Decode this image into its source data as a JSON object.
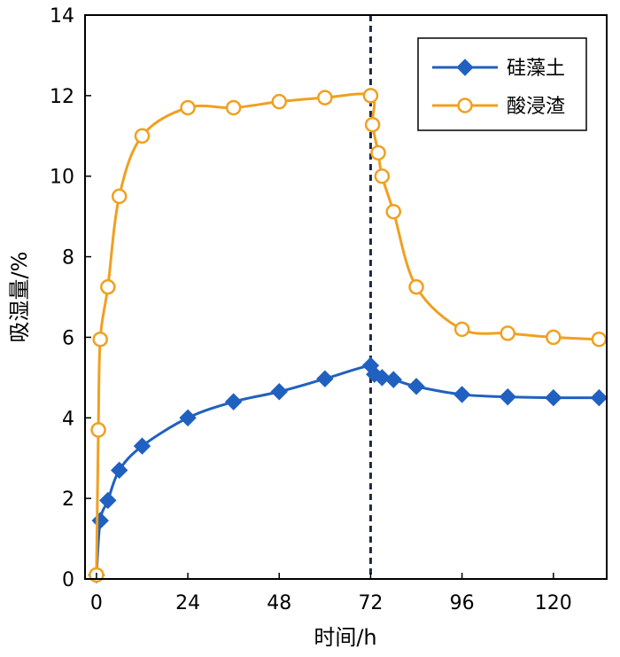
{
  "chart_data": {
    "type": "line",
    "title": "",
    "xlabel": "时间/h",
    "ylabel": "吸湿量/%",
    "xlim": [
      -3,
      134
    ],
    "ylim": [
      0,
      14
    ],
    "xticks": [
      0,
      24,
      48,
      72,
      96,
      120
    ],
    "yticks": [
      0,
      2,
      4,
      6,
      8,
      10,
      12,
      14
    ],
    "grid": false,
    "legend_position": "top-right",
    "reference_line": {
      "x": 72,
      "style": "dashed",
      "color": "#1f2a44"
    },
    "series": [
      {
        "name": "硅藻土",
        "color": "#2060c0",
        "marker": "diamond",
        "x": [
          0,
          1,
          3,
          6,
          12,
          24,
          36,
          48,
          60,
          72,
          73,
          75,
          78,
          84,
          96,
          108,
          120,
          132
        ],
        "y": [
          0.1,
          1.45,
          1.95,
          2.7,
          3.3,
          4.0,
          4.4,
          4.65,
          4.97,
          5.3,
          5.08,
          5.0,
          4.95,
          4.78,
          4.58,
          4.52,
          4.5,
          4.5
        ]
      },
      {
        "name": "酸浸渣",
        "color": "#f0a020",
        "marker": "circle",
        "x": [
          0,
          0.5,
          1,
          3,
          6,
          12,
          24,
          36,
          48,
          60,
          72,
          72.5,
          74,
          75,
          78,
          84,
          96,
          108,
          120,
          132
        ],
        "y": [
          0.1,
          3.7,
          5.95,
          7.25,
          9.5,
          11.0,
          11.7,
          11.7,
          11.85,
          11.95,
          12.0,
          11.28,
          10.58,
          10.0,
          9.12,
          7.25,
          6.2,
          6.1,
          6.0,
          5.95
        ]
      }
    ]
  }
}
